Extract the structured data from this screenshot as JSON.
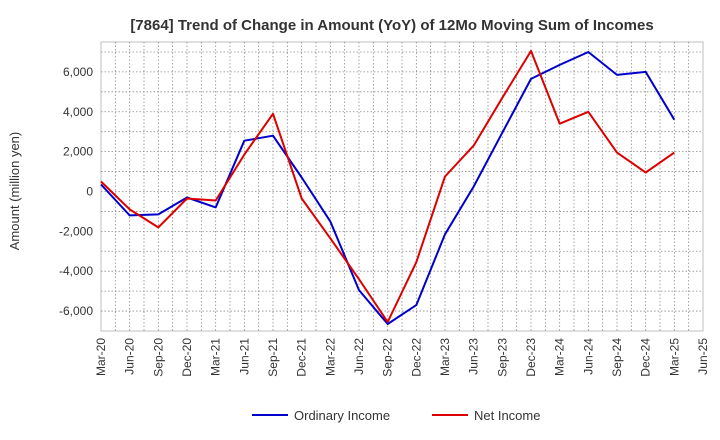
{
  "chart_data": {
    "type": "line",
    "title": "[7864]  Trend of Change in Amount (YoY) of 12Mo Moving Sum of Incomes",
    "ylabel": "Amount (million yen)",
    "xlabel": "",
    "categories": [
      "Mar-20",
      "Jun-20",
      "Sep-20",
      "Dec-20",
      "Mar-21",
      "Jun-21",
      "Sep-21",
      "Dec-21",
      "Mar-22",
      "Jun-22",
      "Sep-22",
      "Dec-22",
      "Mar-23",
      "Jun-23",
      "Sep-23",
      "Dec-23",
      "Mar-24",
      "Jun-24",
      "Sep-24",
      "Dec-24",
      "Mar-25",
      "Jun-25"
    ],
    "yticks": [
      "-6,000",
      "-4,000",
      "-2,000",
      "0",
      "2,000",
      "4,000",
      "6,000"
    ],
    "ytick_values": [
      -6000,
      -4000,
      -2000,
      0,
      2000,
      4000,
      6000
    ],
    "ylim": [
      -7000,
      7500
    ],
    "grid": true,
    "legend_position": "bottom",
    "series": [
      {
        "name": "Ordinary Income",
        "color": "#0000cc",
        "values": [
          350,
          -1200,
          -1150,
          -300,
          -800,
          2550,
          2800,
          700,
          -1500,
          -4950,
          -6650,
          -5700,
          -2150,
          250,
          2950,
          5650,
          6350,
          7000,
          5850,
          6000,
          3600,
          null
        ]
      },
      {
        "name": "Net Income",
        "color": "#dd0000",
        "values": [
          500,
          -900,
          -1800,
          -350,
          -450,
          1850,
          3900,
          -350,
          -2350,
          -4400,
          -6550,
          -3550,
          750,
          2300,
          4700,
          7050,
          3400,
          4000,
          1950,
          950,
          1950,
          null
        ]
      }
    ]
  }
}
